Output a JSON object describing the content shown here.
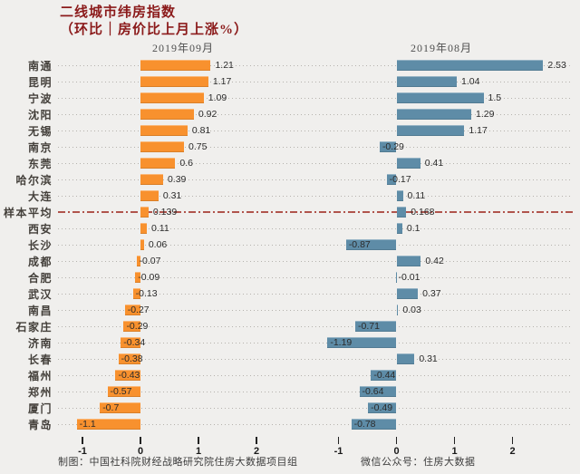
{
  "title": {
    "line1": "二线城市纬房指数",
    "line2": "（环比｜房价比上月上涨%）"
  },
  "colors": {
    "background": "#f0efed",
    "title": "#8b1a1a",
    "bar_sep": "#f8912e",
    "bar_aug": "#5e8ca7",
    "average_line": "#b0544c",
    "dotted_line": "#b5b2ad",
    "label_text": "#44403b",
    "value_text": "#2b2b2b"
  },
  "chart_data": {
    "type": "bar",
    "orientation": "horizontal",
    "value_unit": "%",
    "grid": "dotted-leader-lines",
    "panels": [
      {
        "header": "2019年09月",
        "footer": "制图：中国社科院财经战略研究院住房大数据项目组",
        "bar_color": "#f8912e"
      },
      {
        "header": "2019年08月",
        "footer": "微信公众号：住房大数据",
        "bar_color": "#5e8ca7"
      }
    ],
    "x_ticks": [
      "-1",
      "0",
      "1",
      "2"
    ],
    "xlim": [
      -1.42,
      2.75
    ],
    "average_row_label": "样本平均",
    "average_line_style": "dash-dot",
    "rows": [
      {
        "label": "南通",
        "values": [
          "1.21",
          "2.53"
        ],
        "average": false
      },
      {
        "label": "昆明",
        "values": [
          "1.17",
          "1.04"
        ],
        "average": false
      },
      {
        "label": "宁波",
        "values": [
          "1.09",
          "1.5"
        ],
        "average": false
      },
      {
        "label": "沈阳",
        "values": [
          "0.92",
          "1.29"
        ],
        "average": false
      },
      {
        "label": "无锡",
        "values": [
          "0.81",
          "1.17"
        ],
        "average": false
      },
      {
        "label": "南京",
        "values": [
          "0.75",
          "-0.29"
        ],
        "average": false
      },
      {
        "label": "东莞",
        "values": [
          "0.6",
          "0.41"
        ],
        "average": false
      },
      {
        "label": "哈尔滨",
        "values": [
          "0.39",
          "-0.17"
        ],
        "average": false
      },
      {
        "label": "大连",
        "values": [
          "0.31",
          "0.11"
        ],
        "average": false
      },
      {
        "label": "样本平均",
        "values": [
          "0.139",
          "0.168"
        ],
        "average": true
      },
      {
        "label": "西安",
        "values": [
          "0.11",
          "0.1"
        ],
        "average": false
      },
      {
        "label": "长沙",
        "values": [
          "0.06",
          "-0.87"
        ],
        "average": false
      },
      {
        "label": "成都",
        "values": [
          "-0.07",
          "0.42"
        ],
        "average": false
      },
      {
        "label": "合肥",
        "values": [
          "-0.09",
          "-0.01"
        ],
        "average": false
      },
      {
        "label": "武汉",
        "values": [
          "-0.13",
          "0.37"
        ],
        "average": false
      },
      {
        "label": "南昌",
        "values": [
          "-0.27",
          "0.03"
        ],
        "average": false
      },
      {
        "label": "石家庄",
        "values": [
          "-0.29",
          "-0.71"
        ],
        "average": false
      },
      {
        "label": "济南",
        "values": [
          "-0.34",
          "-1.19"
        ],
        "average": false
      },
      {
        "label": "长春",
        "values": [
          "-0.38",
          "0.31"
        ],
        "average": false
      },
      {
        "label": "福州",
        "values": [
          "-0.43",
          "-0.44"
        ],
        "average": false
      },
      {
        "label": "郑州",
        "values": [
          "-0.57",
          "-0.64"
        ],
        "average": false
      },
      {
        "label": "厦门",
        "values": [
          "-0.7",
          "-0.49"
        ],
        "average": false
      },
      {
        "label": "青岛",
        "values": [
          "-1.1",
          "-0.78"
        ],
        "average": false
      }
    ]
  }
}
